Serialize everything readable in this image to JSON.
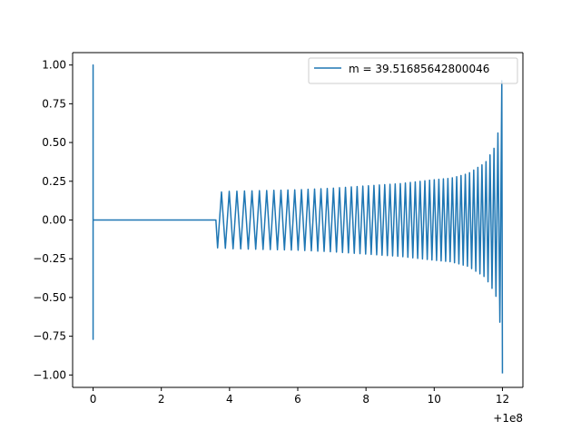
{
  "chart_data": {
    "type": "line",
    "title": "",
    "xlabel": "",
    "ylabel": "",
    "x_offset_label": "+1e8",
    "xlim": [
      -0.6,
      12.6
    ],
    "ylim": [
      -1.08,
      1.08
    ],
    "x_ticks": [
      {
        "value": 0,
        "label": "0"
      },
      {
        "value": 2,
        "label": "2"
      },
      {
        "value": 4,
        "label": "4"
      },
      {
        "value": 6,
        "label": "6"
      },
      {
        "value": 8,
        "label": "8"
      },
      {
        "value": 10,
        "label": "10"
      },
      {
        "value": 12,
        "label": "12"
      }
    ],
    "y_ticks": [
      {
        "value": -1.0,
        "label": "−1.00"
      },
      {
        "value": -0.75,
        "label": "−0.75"
      },
      {
        "value": -0.5,
        "label": "−0.50"
      },
      {
        "value": -0.25,
        "label": "−0.25"
      },
      {
        "value": 0.0,
        "label": "0.00"
      },
      {
        "value": 0.25,
        "label": "0.25"
      },
      {
        "value": 0.5,
        "label": "0.50"
      },
      {
        "value": 0.75,
        "label": "0.75"
      },
      {
        "value": 1.0,
        "label": "1.00"
      }
    ],
    "grid": false,
    "legend_position": "top-right",
    "series": [
      {
        "name": "m = 39.51685642800046",
        "color": "#1f77b4",
        "points": [
          [
            0.0,
            0.0
          ],
          [
            0.0,
            1.0
          ],
          [
            0.0,
            -0.77
          ],
          [
            0.0,
            0.52
          ],
          [
            0.0,
            -0.35
          ],
          [
            0.03,
            0.05
          ],
          [
            0.06,
            -0.02
          ],
          [
            0.1,
            0.0
          ],
          [
            3.6,
            0.0
          ],
          [
            3.65,
            -0.18
          ],
          [
            3.7,
            0.18
          ],
          [
            4.0,
            -0.185
          ],
          [
            5.0,
            0.19
          ],
          [
            6.0,
            -0.195
          ],
          [
            7.0,
            0.205
          ],
          [
            8.0,
            -0.22
          ],
          [
            9.0,
            0.235
          ],
          [
            10.0,
            -0.26
          ],
          [
            10.5,
            0.27
          ],
          [
            11.0,
            -0.3
          ],
          [
            11.5,
            0.37
          ],
          [
            11.8,
            -0.48
          ],
          [
            11.9,
            0.6
          ],
          [
            11.95,
            -0.72
          ],
          [
            11.98,
            0.89
          ],
          [
            12.0,
            -0.99
          ]
        ]
      }
    ]
  }
}
